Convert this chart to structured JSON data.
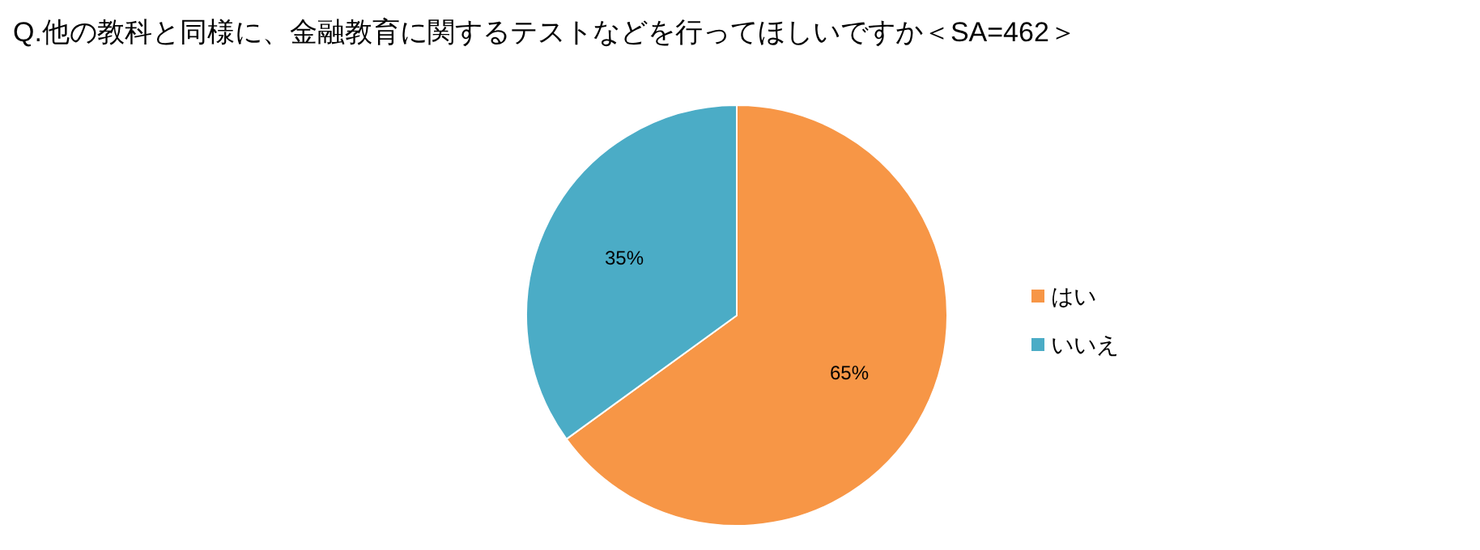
{
  "chart_data": {
    "type": "pie",
    "title": "Q.他の教科と同様に、金融教育に関するテストなどを行ってほしいですか＜SA=462＞",
    "categories": [
      "はい",
      "いいえ"
    ],
    "values": [
      65,
      35
    ],
    "colors": [
      "#f79646",
      "#4bacc6"
    ],
    "value_labels": [
      "65%",
      "35%"
    ],
    "legend": "right"
  }
}
